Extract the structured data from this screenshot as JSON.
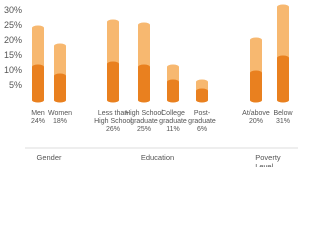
{
  "chart_data": {
    "type": "bar",
    "barmode": "overlay",
    "categories": [
      "Men",
      "Women",
      "Less than\nHigh School",
      "High School\ngraduate",
      "College\ngraduate",
      "Post-\ngraduate",
      "At/above",
      "Below"
    ],
    "groups": [
      {
        "name": "Gender",
        "members": [
          0,
          1
        ]
      },
      {
        "name": "Education",
        "members": [
          2,
          3,
          4,
          5
        ]
      },
      {
        "name": "Poverty Level",
        "members": [
          6,
          7
        ]
      }
    ],
    "series": [
      {
        "color": "#f7b870",
        "values": [
          24,
          18,
          26,
          25,
          11,
          6,
          20,
          31
        ],
        "value_labels": [
          "24%",
          "18%",
          "26%",
          "25%",
          "11%",
          "6%",
          "20%",
          "31%"
        ]
      },
      {
        "color": "#e9801f",
        "values": [
          11,
          8,
          12,
          11,
          6,
          3,
          9,
          14
        ]
      }
    ],
    "ylim": [
      0,
      31
    ],
    "yticks": [
      {
        "value": 5,
        "label": "5%"
      },
      {
        "value": 10,
        "label": "10%"
      },
      {
        "value": 15,
        "label": "15%"
      },
      {
        "value": 20,
        "label": "20%"
      },
      {
        "value": 25,
        "label": "25%"
      },
      {
        "value": 30,
        "label": "30%"
      }
    ]
  }
}
